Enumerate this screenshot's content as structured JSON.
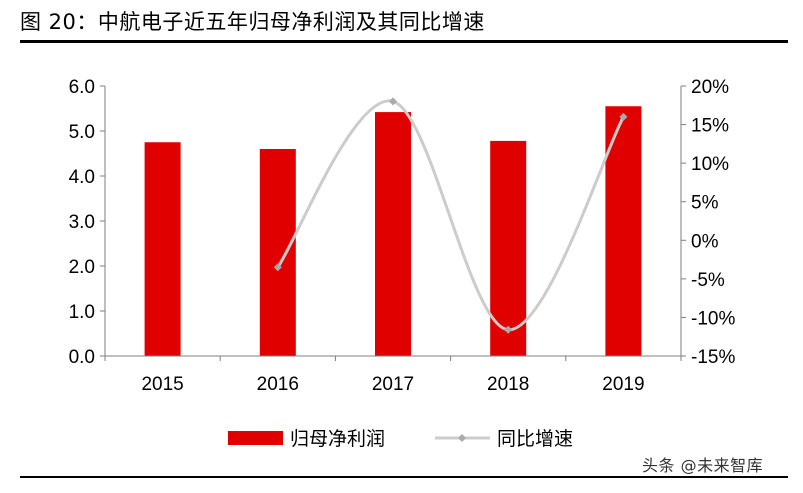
{
  "figure_title": "图 20：中航电子近五年归母净利润及其同比增速",
  "watermark": "头条 @未来智库",
  "colors": {
    "bar": "#e00000",
    "line": "#cccccc",
    "axis": "#7f7f7f"
  },
  "chart_data": {
    "type": "bar",
    "categories": [
      "2015",
      "2016",
      "2017",
      "2018",
      "2019"
    ],
    "series": [
      {
        "name": "归母净利润",
        "type": "bar",
        "axis": "left",
        "values": [
          4.75,
          4.6,
          5.42,
          4.78,
          5.55
        ]
      },
      {
        "name": "同比增速",
        "type": "line",
        "axis": "right",
        "smooth": true,
        "values": [
          null,
          -3.5,
          18.0,
          -11.6,
          16.0
        ]
      }
    ],
    "y_left": {
      "min": 0,
      "max": 6.0,
      "ticks": [
        "0.0",
        "1.0",
        "2.0",
        "3.0",
        "4.0",
        "5.0",
        "6.0"
      ]
    },
    "y_right": {
      "min": -15,
      "max": 20,
      "ticks": [
        "-15%",
        "-10%",
        "-5%",
        "0%",
        "5%",
        "10%",
        "15%",
        "20%"
      ]
    },
    "legend": {
      "position": "bottom"
    }
  }
}
